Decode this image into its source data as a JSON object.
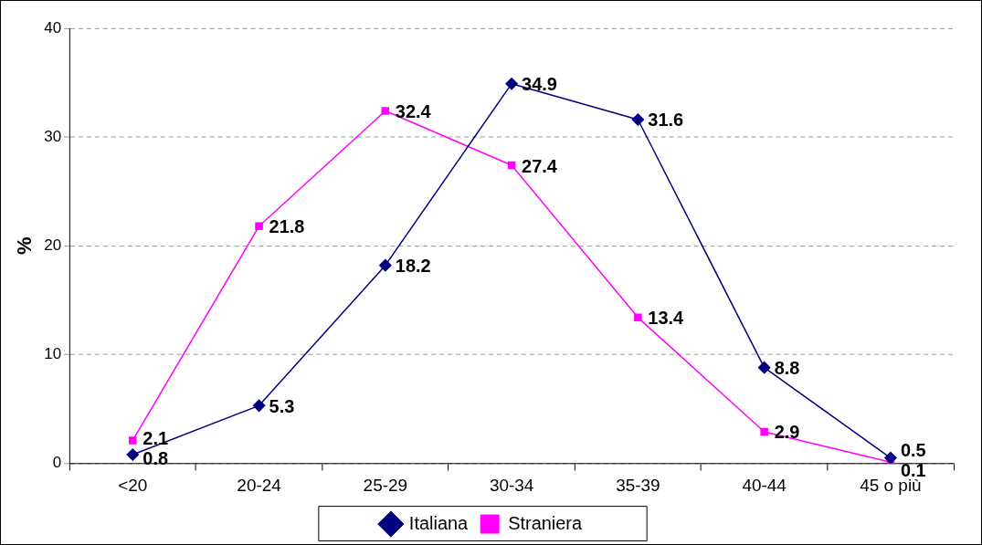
{
  "chart_data": {
    "type": "line",
    "ylabel": "%",
    "categories": [
      "<20",
      "20-24",
      "25-29",
      "30-34",
      "35-39",
      "40-44",
      "45 o più"
    ],
    "series": [
      {
        "name": "Italiana",
        "color": "#000080",
        "marker": "diamond",
        "values": [
          0.8,
          5.3,
          18.2,
          34.9,
          31.6,
          8.8,
          0.5
        ]
      },
      {
        "name": "Straniera",
        "color": "#ff00ff",
        "marker": "square",
        "values": [
          2.1,
          21.8,
          32.4,
          27.4,
          13.4,
          2.9,
          0.1
        ]
      }
    ],
    "ylim": [
      0,
      40
    ],
    "yticks": [
      0,
      10,
      20,
      30,
      40
    ],
    "grid": "y",
    "legend": "bottom",
    "data_labels": true,
    "line_style": "solid"
  }
}
